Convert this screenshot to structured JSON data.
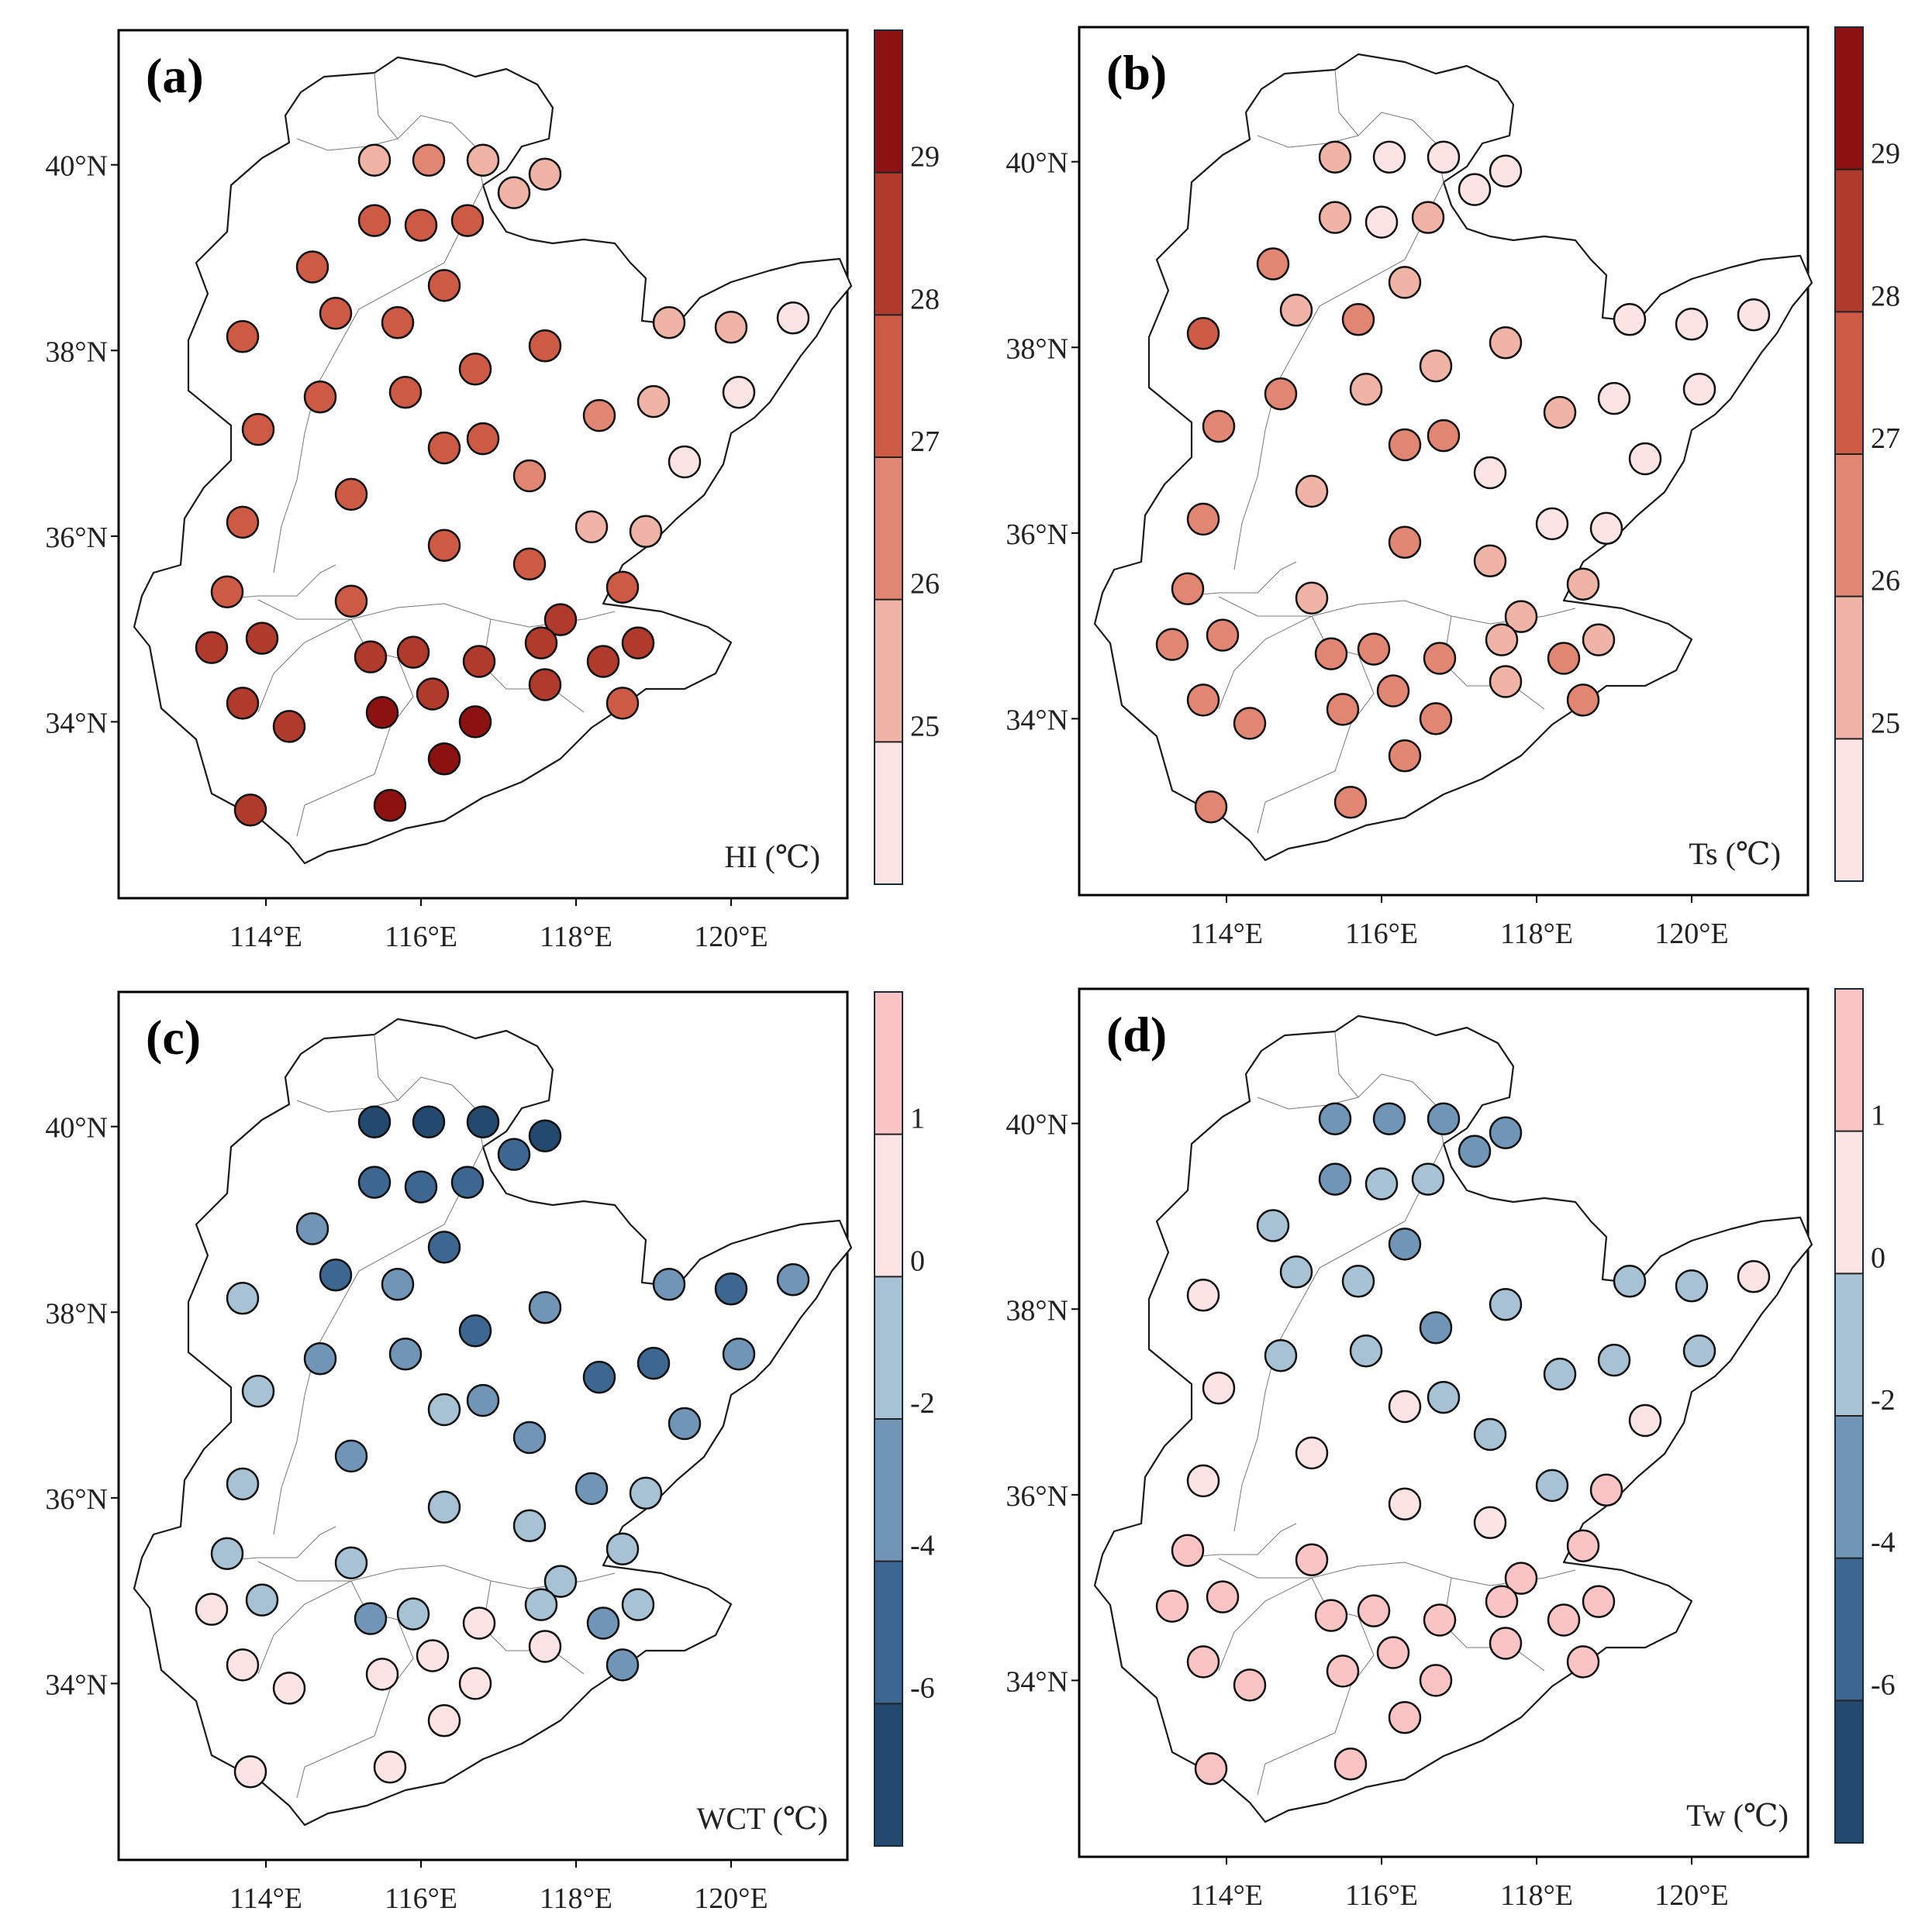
{
  "panels": [
    {
      "id": "a",
      "letter": "(a)",
      "variable_label": "HI (℃)",
      "lat_ticks": [
        "40°N",
        "38°N",
        "36°N",
        "34°N"
      ],
      "lon_ticks": [
        "114°E",
        "116°E",
        "118°E",
        "120°E"
      ],
      "colorbar": {
        "tick_labels": [
          "29",
          "28",
          "27",
          "26",
          "25"
        ],
        "bins": [
          "#fde4e4",
          "#efb4a6",
          "#e08672",
          "#cc5a45",
          "#b03a2c",
          "#8c1111"
        ]
      }
    },
    {
      "id": "b",
      "letter": "(b)",
      "variable_label": "Ts (℃)",
      "lat_ticks": [
        "40°N",
        "38°N",
        "36°N",
        "34°N"
      ],
      "lon_ticks": [
        "114°E",
        "116°E",
        "118°E",
        "120°E"
      ],
      "colorbar": {
        "tick_labels": [
          "29",
          "28",
          "27",
          "26",
          "25"
        ],
        "bins": [
          "#fde4e4",
          "#efb4a6",
          "#e08672",
          "#cc5a45",
          "#b03a2c",
          "#8c1111"
        ]
      }
    },
    {
      "id": "c",
      "letter": "(c)",
      "variable_label": "WCT (℃)",
      "lat_ticks": [
        "40°N",
        "38°N",
        "36°N",
        "34°N"
      ],
      "lon_ticks": [
        "114°E",
        "116°E",
        "118°E",
        "120°E"
      ],
      "colorbar": {
        "tick_labels": [
          "1",
          "0",
          "-2",
          "-4",
          "-6"
        ],
        "bins": [
          "#23496e",
          "#3d6790",
          "#7195b7",
          "#a8c2d5",
          "#fde4e4",
          "#fac4c4"
        ]
      }
    },
    {
      "id": "d",
      "letter": "(d)",
      "variable_label": "Tw (℃)",
      "lat_ticks": [
        "40°N",
        "38°N",
        "36°N",
        "34°N"
      ],
      "lon_ticks": [
        "114°E",
        "116°E",
        "118°E",
        "120°E"
      ],
      "colorbar": {
        "tick_labels": [
          "1",
          "0",
          "-2",
          "-4",
          "-6"
        ],
        "bins": [
          "#23496e",
          "#3d6790",
          "#7195b7",
          "#a8c2d5",
          "#fde4e4",
          "#fac4c4"
        ]
      }
    }
  ],
  "stations": [
    {
      "lon": 115.4,
      "lat": 40.05
    },
    {
      "lon": 116.1,
      "lat": 40.05
    },
    {
      "lon": 116.8,
      "lat": 40.05
    },
    {
      "lon": 117.6,
      "lat": 39.9
    },
    {
      "lon": 117.2,
      "lat": 39.7
    },
    {
      "lon": 115.4,
      "lat": 39.4
    },
    {
      "lon": 116.0,
      "lat": 39.35
    },
    {
      "lon": 116.6,
      "lat": 39.4
    },
    {
      "lon": 114.6,
      "lat": 38.9
    },
    {
      "lon": 116.3,
      "lat": 38.7
    },
    {
      "lon": 114.9,
      "lat": 38.4
    },
    {
      "lon": 115.7,
      "lat": 38.3
    },
    {
      "lon": 113.7,
      "lat": 38.15
    },
    {
      "lon": 116.7,
      "lat": 37.8
    },
    {
      "lon": 117.6,
      "lat": 38.05
    },
    {
      "lon": 119.2,
      "lat": 38.3
    },
    {
      "lon": 120.0,
      "lat": 38.25
    },
    {
      "lon": 120.8,
      "lat": 38.35
    },
    {
      "lon": 114.7,
      "lat": 37.5
    },
    {
      "lon": 115.8,
      "lat": 37.55
    },
    {
      "lon": 120.1,
      "lat": 37.55
    },
    {
      "lon": 113.9,
      "lat": 37.15
    },
    {
      "lon": 118.3,
      "lat": 37.3
    },
    {
      "lon": 119.0,
      "lat": 37.45
    },
    {
      "lon": 116.3,
      "lat": 36.95
    },
    {
      "lon": 116.8,
      "lat": 37.05
    },
    {
      "lon": 117.4,
      "lat": 36.65
    },
    {
      "lon": 119.4,
      "lat": 36.8
    },
    {
      "lon": 115.1,
      "lat": 36.45
    },
    {
      "lon": 113.7,
      "lat": 36.15
    },
    {
      "lon": 118.2,
      "lat": 36.1
    },
    {
      "lon": 118.9,
      "lat": 36.05
    },
    {
      "lon": 116.3,
      "lat": 35.9
    },
    {
      "lon": 117.4,
      "lat": 35.7
    },
    {
      "lon": 113.5,
      "lat": 35.4
    },
    {
      "lon": 115.1,
      "lat": 35.3
    },
    {
      "lon": 118.6,
      "lat": 35.45
    },
    {
      "lon": 117.8,
      "lat": 35.1
    },
    {
      "lon": 113.95,
      "lat": 34.9
    },
    {
      "lon": 117.55,
      "lat": 34.85
    },
    {
      "lon": 118.8,
      "lat": 34.85
    },
    {
      "lon": 113.3,
      "lat": 34.8
    },
    {
      "lon": 115.35,
      "lat": 34.7
    },
    {
      "lon": 115.9,
      "lat": 34.75
    },
    {
      "lon": 116.75,
      "lat": 34.65
    },
    {
      "lon": 118.35,
      "lat": 34.65
    },
    {
      "lon": 117.6,
      "lat": 34.4
    },
    {
      "lon": 113.7,
      "lat": 34.2
    },
    {
      "lon": 116.15,
      "lat": 34.3
    },
    {
      "lon": 118.6,
      "lat": 34.2
    },
    {
      "lon": 114.3,
      "lat": 33.95
    },
    {
      "lon": 115.5,
      "lat": 34.1
    },
    {
      "lon": 116.7,
      "lat": 34.0
    },
    {
      "lon": 116.3,
      "lat": 33.6
    },
    {
      "lon": 113.8,
      "lat": 33.05
    },
    {
      "lon": 115.6,
      "lat": 33.1
    }
  ],
  "station_values": {
    "a": [
      25.5,
      26.5,
      25.5,
      25.2,
      25.3,
      27.5,
      27.5,
      27.5,
      27.8,
      27.5,
      27.6,
      27.6,
      27.8,
      27.5,
      27.6,
      25.6,
      25.4,
      24.5,
      27.7,
      27.6,
      24.5,
      27.6,
      26.6,
      25.7,
      27.8,
      27.6,
      26.4,
      24.5,
      27.8,
      27.5,
      25.6,
      25.6,
      27.5,
      27.7,
      27.9,
      27.6,
      27.7,
      28.1,
      28.4,
      28.1,
      28.3,
      28.3,
      28.4,
      28.6,
      28.3,
      28.5,
      28.4,
      28.2,
      28.6,
      27.8,
      28.4,
      29.4,
      29.5,
      29.5,
      28.3,
      29.5
    ],
    "b": [
      25.6,
      24.7,
      24.7,
      24.5,
      24.7,
      25.6,
      24.9,
      25.7,
      26.3,
      25.6,
      25.4,
      26.5,
      27.2,
      25.6,
      25.7,
      24.6,
      24.6,
      24.5,
      26.5,
      25.7,
      24.8,
      26.6,
      25.3,
      24.7,
      26.8,
      26.8,
      24.8,
      24.8,
      25.3,
      26.3,
      24.9,
      24.8,
      26.3,
      25.5,
      26.3,
      25.3,
      25.7,
      25.6,
      26.7,
      25.7,
      25.7,
      26.7,
      26.5,
      26.5,
      26.6,
      26.4,
      25.6,
      26.6,
      26.5,
      26.3,
      26.6,
      26.4,
      26.5,
      26.7,
      26.6,
      26.7
    ],
    "c": [
      -6.2,
      -6.3,
      -6.2,
      -6.1,
      -5.5,
      -5.2,
      -5.3,
      -5.0,
      -3.4,
      -4.5,
      -4.6,
      -3.2,
      -1.6,
      -4.6,
      -2.6,
      -3.2,
      -4.5,
      -3.2,
      -2.8,
      -3.3,
      -3.0,
      -1.5,
      -4.3,
      -4.4,
      -1.6,
      -2.6,
      -2.5,
      -2.9,
      -2.7,
      -1.5,
      -3.3,
      -1.5,
      -2.0,
      -1.5,
      -1.3,
      -1.4,
      -1.4,
      -1.5,
      -1.5,
      -1.5,
      -1.6,
      0.6,
      -2.2,
      -2.0,
      0.4,
      -2.4,
      0.6,
      0.7,
      0.7,
      -2.1,
      0.6,
      0.6,
      0.6,
      0.6,
      0.6,
      0.6
    ],
    "d": [
      -2.8,
      -2.8,
      -2.8,
      -3.2,
      -3.4,
      -3.2,
      -1.5,
      -1.6,
      -1.7,
      -2.1,
      -1.6,
      -1.5,
      0.6,
      -2.6,
      -1.5,
      -1.5,
      -1.5,
      0.7,
      -1.5,
      -1.6,
      -1.6,
      0.6,
      -1.6,
      -1.5,
      0.6,
      -1.6,
      -1.5,
      0.6,
      0.7,
      0.6,
      -1.6,
      1.4,
      0.7,
      0.7,
      1.4,
      1.4,
      1.4,
      1.4,
      1.3,
      1.3,
      1.3,
      1.4,
      1.4,
      1.4,
      1.3,
      1.3,
      1.4,
      1.3,
      1.4,
      1.4,
      1.4,
      1.3,
      1.3,
      1.3,
      1.4,
      1.4
    ]
  }
}
